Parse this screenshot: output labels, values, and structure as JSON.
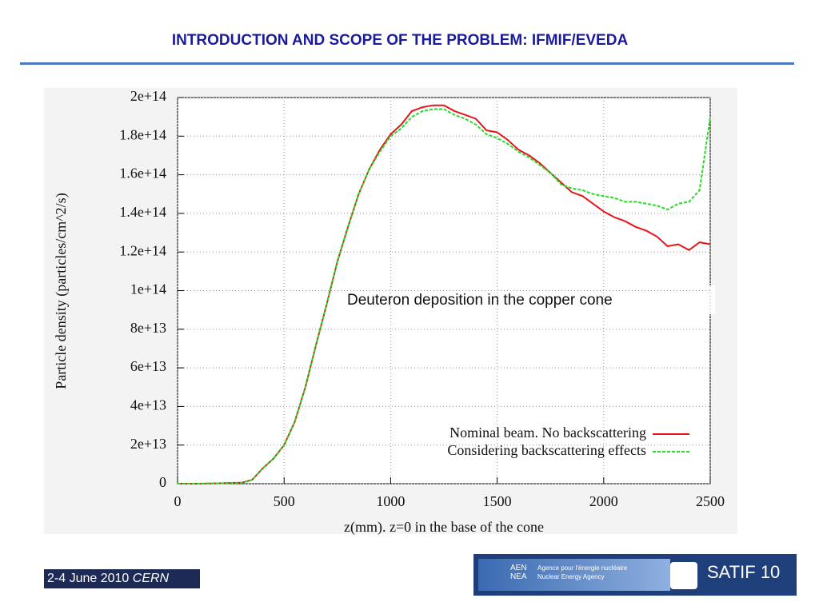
{
  "header": {
    "title": "INTRODUCTION AND SCOPE OF THE PROBLEM: IFMIF/EVEDA"
  },
  "chart_data": {
    "type": "line",
    "ylabel": "Particle density (particles/cm^2/s)",
    "xlabel": "z(mm). z=0 in the base of the cone",
    "annotation": "Deuteron deposition in the copper cone",
    "x": [
      0,
      50,
      100,
      150,
      200,
      250,
      300,
      350,
      400,
      450,
      500,
      550,
      600,
      650,
      700,
      750,
      800,
      850,
      900,
      950,
      1000,
      1050,
      1100,
      1150,
      1200,
      1250,
      1300,
      1350,
      1400,
      1450,
      1500,
      1550,
      1600,
      1650,
      1700,
      1750,
      1800,
      1850,
      1900,
      1950,
      2000,
      2050,
      2100,
      2150,
      2200,
      2250,
      2300,
      2350,
      2400,
      2450,
      2500
    ],
    "series": [
      {
        "name": "Nominal beam. No backscattering",
        "color": "#e8141c",
        "line_style": "solid",
        "values": [
          0,
          0,
          0,
          100000000000.0,
          200000000000.0,
          400000000000.0,
          500000000000.0,
          2000000000000.0,
          8000000000000.0,
          13000000000000.0,
          20000000000000.0,
          32000000000000.0,
          50000000000000.0,
          72000000000000.0,
          93000000000000.0,
          115000000000000.0,
          133000000000000.0,
          150000000000000.0,
          163000000000000.0,
          173000000000000.0,
          181000000000000.0,
          186000000000000.0,
          193000000000000.0,
          195000000000000.0,
          196000000000000.0,
          196000000000000.0,
          193000000000000.0,
          191000000000000.0,
          189000000000000.0,
          183000000000000.0,
          182000000000000.0,
          178000000000000.0,
          173000000000000.0,
          170000000000000.0,
          166000000000000.0,
          161000000000000.0,
          156000000000000.0,
          151000000000000.0,
          149000000000000.0,
          145000000000000.0,
          141000000000000.0,
          138000000000000.0,
          136000000000000.0,
          133000000000000.0,
          131000000000000.0,
          128000000000000.0,
          123000000000000.0,
          124000000000000.0,
          121000000000000.0,
          125000000000000.0,
          124000000000000.0
        ]
      },
      {
        "name": "Considering backscattering effects",
        "color": "#22dd22",
        "line_style": "dashed",
        "values": [
          0,
          0,
          0,
          100000000000.0,
          200000000000.0,
          400000000000.0,
          500000000000.0,
          2000000000000.0,
          8000000000000.0,
          13000000000000.0,
          20000000000000.0,
          32000000000000.0,
          50000000000000.0,
          72000000000000.0,
          93000000000000.0,
          115000000000000.0,
          133000000000000.0,
          150000000000000.0,
          163000000000000.0,
          172000000000000.0,
          180000000000000.0,
          184000000000000.0,
          190000000000000.0,
          193000000000000.0,
          194000000000000.0,
          194000000000000.0,
          191000000000000.0,
          189000000000000.0,
          186000000000000.0,
          181000000000000.0,
          179000000000000.0,
          176000000000000.0,
          172000000000000.0,
          169000000000000.0,
          165000000000000.0,
          161000000000000.0,
          155000000000000.0,
          153000000000000.0,
          152000000000000.0,
          150000000000000.0,
          149000000000000.0,
          148000000000000.0,
          146000000000000.0,
          146000000000000.0,
          145000000000000.0,
          144000000000000.0,
          142000000000000.0,
          145000000000000.0,
          146000000000000.0,
          152000000000000.0,
          190000000000000.0
        ]
      }
    ],
    "xlim": [
      0,
      2500
    ],
    "xticks": [
      0,
      500,
      1000,
      1500,
      2000,
      2500
    ],
    "ylim": [
      0,
      200000000000000.0
    ],
    "yticks": [
      {
        "value": 0,
        "label": "0"
      },
      {
        "value": 20000000000000.0,
        "label": "2e+13"
      },
      {
        "value": 40000000000000.0,
        "label": "4e+13"
      },
      {
        "value": 60000000000000.0,
        "label": "6e+13"
      },
      {
        "value": 80000000000000.0,
        "label": "8e+13"
      },
      {
        "value": 100000000000000.0,
        "label": "1e+14"
      },
      {
        "value": 120000000000000.0,
        "label": "1.2e+14"
      },
      {
        "value": 140000000000000.0,
        "label": "1.4e+14"
      },
      {
        "value": 160000000000000.0,
        "label": "1.6e+14"
      },
      {
        "value": 180000000000000.0,
        "label": "1.8e+14"
      },
      {
        "value": 200000000000000.0,
        "label": "2e+14"
      }
    ],
    "grid": true,
    "legend": "bottom-right"
  },
  "footer": {
    "date": "2-4 June 2010",
    "place": "CERN",
    "agency_short_1": "AEN",
    "agency_short_2": "NEA",
    "agency_fr": "Agence pour l'énergie nucléaire",
    "agency_en": "Nuclear Energy Agency",
    "conference": "SATIF 10"
  }
}
